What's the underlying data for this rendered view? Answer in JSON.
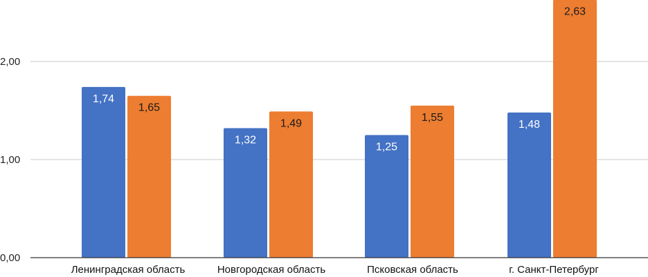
{
  "chart_data": {
    "type": "bar",
    "categories": [
      "Ленинградская область",
      "Новгородская область",
      "Псковская область",
      "г. Санкт-Петербург"
    ],
    "series": [
      {
        "values": [
          1.74,
          1.32,
          1.25,
          1.48
        ],
        "labels": [
          "1,74",
          "1,32",
          "1,25",
          "1,48"
        ],
        "color": "#4472c4",
        "label_color": "#ffffff"
      },
      {
        "values": [
          1.65,
          1.49,
          1.55,
          2.63
        ],
        "labels": [
          "1,65",
          "1,49",
          "1,55",
          "2,63"
        ],
        "color": "#ed7d31",
        "label_color": "#1a1a1a"
      }
    ],
    "y_ticks": [
      {
        "value": 0,
        "label": "0,00"
      },
      {
        "value": 1,
        "label": "1,00"
      },
      {
        "value": 2,
        "label": "2,00"
      }
    ],
    "ylim": [
      0,
      2.63
    ],
    "grid": true,
    "legend": "none",
    "title": "",
    "xlabel": "",
    "ylabel": ""
  }
}
